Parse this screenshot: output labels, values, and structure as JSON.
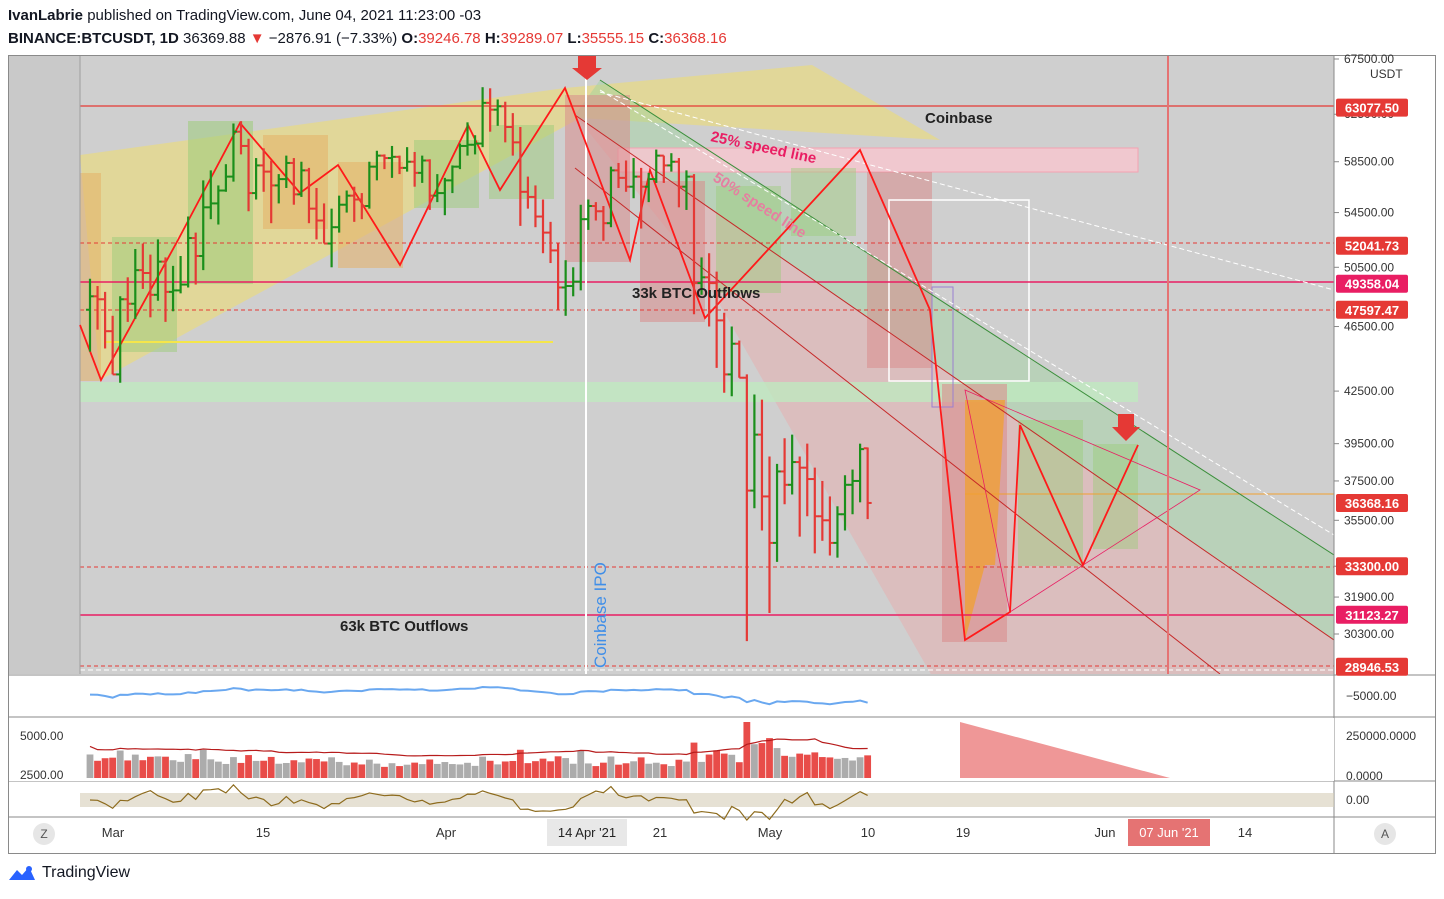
{
  "header": {
    "author": "IvanLabrie",
    "published_text": "published on TradingView.com, June 04, 2021 11:23:00 -03",
    "symbol": "BINANCE:BTCUSDT, 1D",
    "last": "36369.88",
    "change_arrow": "▼",
    "change": "−2876.91 (−7.33%)",
    "o_label": "O:",
    "o_val": "39246.78",
    "h_label": "H:",
    "h_val": "39289.07",
    "l_label": "L:",
    "l_val": "35555.15",
    "c_label": "C:",
    "c_val": "36368.16"
  },
  "price_axis": {
    "currency": "USDT",
    "ticks": [
      "67500.00",
      "62500.00",
      "58500.00",
      "54500.00",
      "50500.00",
      "46500.00",
      "42500.00",
      "39500.00",
      "37500.00",
      "35500.00",
      "33300.00",
      "31900.00",
      "30300.00"
    ],
    "badges": [
      {
        "text": "63077.50",
        "color": "#e53935"
      },
      {
        "text": "52041.73",
        "color": "#e53935"
      },
      {
        "text": "49358.04",
        "color": "#e91e63"
      },
      {
        "text": "47597.47",
        "color": "#e53935"
      },
      {
        "text": "36368.16",
        "color": "#e53935"
      },
      {
        "text": "33300.00",
        "color": "#e53935"
      },
      {
        "text": "31123.27",
        "color": "#e91e63"
      },
      {
        "text": "28946.53",
        "color": "#e53935"
      }
    ]
  },
  "annotations": {
    "coinbase": "Coinbase",
    "speed25": "25% speed line",
    "speed50": "50% speed line",
    "outflows33": "33k BTC Outflows",
    "outflows63": "63k BTC Outflows",
    "ipo": "Coinbase IPO"
  },
  "panes": {
    "oscillator_tick": "−5000.00",
    "volume_left_ticks": [
      "5000.00",
      "2500.00"
    ],
    "volume_right_ticks": [
      "250000.0000",
      "0.0000"
    ],
    "momentum_tick": "0.00"
  },
  "time_axis": {
    "labels": [
      "Mar",
      "15",
      "Apr",
      "21",
      "May",
      "10",
      "19",
      "Jun",
      "14"
    ],
    "crosshair_date": "14 Apr '21",
    "future_date": "07 Jun '21"
  },
  "footer": {
    "brand": "TradingView",
    "z_button": "Z",
    "a_button": "A"
  },
  "colors": {
    "up": "#1b8f1b",
    "down": "#e53935",
    "accent_red": "#e53935",
    "magenta": "#e91e63"
  },
  "chart_data": {
    "type": "ohlc",
    "symbol": "BINANCE:BTCUSDT",
    "interval": "1D",
    "ylim": [
      28500,
      68000
    ],
    "log_scale": true,
    "horizontal_levels": [
      63077.5,
      52041.73,
      49358.04,
      47597.47,
      36368.16,
      33300.0,
      31123.27,
      28946.53
    ],
    "candles": [
      {
        "o": 47600,
        "h": 49700,
        "l": 44900,
        "c": 48500
      },
      {
        "o": 48500,
        "h": 49200,
        "l": 46300,
        "c": 48300
      },
      {
        "o": 48300,
        "h": 48800,
        "l": 45100,
        "c": 46200
      },
      {
        "o": 46200,
        "h": 47200,
        "l": 43500,
        "c": 43500
      },
      {
        "o": 43500,
        "h": 48500,
        "l": 43000,
        "c": 48300
      },
      {
        "o": 48300,
        "h": 49800,
        "l": 46800,
        "c": 48000
      },
      {
        "o": 48000,
        "h": 51800,
        "l": 47000,
        "c": 50300
      },
      {
        "o": 50300,
        "h": 52200,
        "l": 49000,
        "c": 50100
      },
      {
        "o": 50100,
        "h": 51400,
        "l": 47100,
        "c": 48600
      },
      {
        "o": 48600,
        "h": 52500,
        "l": 48200,
        "c": 50900
      },
      {
        "o": 50900,
        "h": 51200,
        "l": 46800,
        "c": 48800
      },
      {
        "o": 48800,
        "h": 50600,
        "l": 47500,
        "c": 48900
      },
      {
        "o": 48900,
        "h": 51300,
        "l": 48700,
        "c": 49300
      },
      {
        "o": 49300,
        "h": 54200,
        "l": 49100,
        "c": 52600
      },
      {
        "o": 52600,
        "h": 53000,
        "l": 49300,
        "c": 51300
      },
      {
        "o": 51300,
        "h": 57000,
        "l": 50300,
        "c": 54900
      },
      {
        "o": 54900,
        "h": 57800,
        "l": 54000,
        "c": 55200
      },
      {
        "o": 55200,
        "h": 56600,
        "l": 53600,
        "c": 56200
      },
      {
        "o": 56200,
        "h": 58300,
        "l": 56100,
        "c": 57300
      },
      {
        "o": 57300,
        "h": 61700,
        "l": 56900,
        "c": 61000
      },
      {
        "o": 61000,
        "h": 61900,
        "l": 59100,
        "c": 59800
      },
      {
        "o": 59800,
        "h": 60400,
        "l": 54600,
        "c": 56000
      },
      {
        "o": 56000,
        "h": 58800,
        "l": 55500,
        "c": 58200
      },
      {
        "o": 58200,
        "h": 59600,
        "l": 56100,
        "c": 57700
      },
      {
        "o": 57700,
        "h": 58600,
        "l": 53700,
        "c": 56600
      },
      {
        "o": 56600,
        "h": 57500,
        "l": 55200,
        "c": 57100
      },
      {
        "o": 57100,
        "h": 59000,
        "l": 56400,
        "c": 58400
      },
      {
        "o": 58400,
        "h": 58800,
        "l": 55100,
        "c": 55900
      },
      {
        "o": 55900,
        "h": 58500,
        "l": 55700,
        "c": 57800
      },
      {
        "o": 57800,
        "h": 58000,
        "l": 53700,
        "c": 54800
      },
      {
        "o": 54800,
        "h": 56400,
        "l": 52500,
        "c": 53900
      },
      {
        "o": 53900,
        "h": 55200,
        "l": 52200,
        "c": 52200
      },
      {
        "o": 52200,
        "h": 54800,
        "l": 50500,
        "c": 53400
      },
      {
        "o": 53400,
        "h": 55800,
        "l": 53000,
        "c": 55100
      },
      {
        "o": 55100,
        "h": 56200,
        "l": 54500,
        "c": 55800
      },
      {
        "o": 55800,
        "h": 56500,
        "l": 53800,
        "c": 55500
      },
      {
        "o": 55500,
        "h": 56000,
        "l": 54000,
        "c": 55000
      },
      {
        "o": 55000,
        "h": 58500,
        "l": 54800,
        "c": 58100
      },
      {
        "o": 58100,
        "h": 59400,
        "l": 57000,
        "c": 59000
      },
      {
        "o": 59000,
        "h": 59100,
        "l": 57900,
        "c": 58800
      },
      {
        "o": 58800,
        "h": 59800,
        "l": 57200,
        "c": 58900
      },
      {
        "o": 58900,
        "h": 59000,
        "l": 57500,
        "c": 58000
      },
      {
        "o": 58000,
        "h": 59700,
        "l": 57700,
        "c": 58500
      },
      {
        "o": 58500,
        "h": 59300,
        "l": 56500,
        "c": 57600
      },
      {
        "o": 57600,
        "h": 59000,
        "l": 56800,
        "c": 58600
      },
      {
        "o": 58600,
        "h": 58700,
        "l": 54700,
        "c": 55800
      },
      {
        "o": 55800,
        "h": 57500,
        "l": 55300,
        "c": 56000
      },
      {
        "o": 56000,
        "h": 57200,
        "l": 54300,
        "c": 57000
      },
      {
        "o": 57000,
        "h": 58200,
        "l": 56000,
        "c": 58100
      },
      {
        "o": 58100,
        "h": 60000,
        "l": 57900,
        "c": 59800
      },
      {
        "o": 59800,
        "h": 61800,
        "l": 59000,
        "c": 59900
      },
      {
        "o": 59900,
        "h": 60700,
        "l": 59100,
        "c": 60000
      },
      {
        "o": 60000,
        "h": 64900,
        "l": 59700,
        "c": 63500
      },
      {
        "o": 63500,
        "h": 64800,
        "l": 61000,
        "c": 62900
      },
      {
        "o": 62900,
        "h": 63800,
        "l": 61500,
        "c": 63200
      },
      {
        "o": 63200,
        "h": 63600,
        "l": 60100,
        "c": 61400
      },
      {
        "o": 61400,
        "h": 62600,
        "l": 59000,
        "c": 60100
      },
      {
        "o": 60100,
        "h": 61400,
        "l": 53500,
        "c": 56100
      },
      {
        "o": 56100,
        "h": 57300,
        "l": 54800,
        "c": 55700
      },
      {
        "o": 55700,
        "h": 56600,
        "l": 53400,
        "c": 54200
      },
      {
        "o": 54200,
        "h": 55500,
        "l": 51500,
        "c": 53000
      },
      {
        "o": 53000,
        "h": 53800,
        "l": 50800,
        "c": 51700
      },
      {
        "o": 51700,
        "h": 52200,
        "l": 47600,
        "c": 49100
      },
      {
        "o": 49100,
        "h": 51000,
        "l": 47200,
        "c": 49200
      },
      {
        "o": 49200,
        "h": 50500,
        "l": 48500,
        "c": 49500
      },
      {
        "o": 49500,
        "h": 55100,
        "l": 48900,
        "c": 54000
      },
      {
        "o": 54000,
        "h": 55500,
        "l": 53200,
        "c": 55000
      },
      {
        "o": 55000,
        "h": 55300,
        "l": 53900,
        "c": 54600
      },
      {
        "o": 54600,
        "h": 55000,
        "l": 52400,
        "c": 53700
      },
      {
        "o": 53700,
        "h": 58100,
        "l": 53400,
        "c": 57800
      },
      {
        "o": 57800,
        "h": 58400,
        "l": 56400,
        "c": 57200
      },
      {
        "o": 57200,
        "h": 58600,
        "l": 56100,
        "c": 56500
      },
      {
        "o": 56500,
        "h": 58800,
        "l": 55600,
        "c": 57300
      },
      {
        "o": 57300,
        "h": 58000,
        "l": 53300,
        "c": 56500
      },
      {
        "o": 56500,
        "h": 57600,
        "l": 55300,
        "c": 57100
      },
      {
        "o": 57100,
        "h": 59500,
        "l": 56800,
        "c": 59000
      },
      {
        "o": 59000,
        "h": 59000,
        "l": 56800,
        "c": 58200
      },
      {
        "o": 58200,
        "h": 59200,
        "l": 57700,
        "c": 58500
      },
      {
        "o": 58500,
        "h": 58800,
        "l": 54900,
        "c": 56500
      },
      {
        "o": 56500,
        "h": 57800,
        "l": 54700,
        "c": 57300
      },
      {
        "o": 57300,
        "h": 57500,
        "l": 47300,
        "c": 49400
      },
      {
        "o": 49400,
        "h": 51200,
        "l": 48600,
        "c": 49800
      },
      {
        "o": 49800,
        "h": 51500,
        "l": 46500,
        "c": 49400
      },
      {
        "o": 49400,
        "h": 50200,
        "l": 43900,
        "c": 46900
      },
      {
        "o": 46900,
        "h": 47400,
        "l": 42400,
        "c": 43500
      },
      {
        "o": 43500,
        "h": 46500,
        "l": 42200,
        "c": 45400
      },
      {
        "o": 45400,
        "h": 45600,
        "l": 43300,
        "c": 43300
      },
      {
        "o": 43300,
        "h": 43500,
        "l": 30000,
        "c": 37000
      },
      {
        "o": 37000,
        "h": 42300,
        "l": 36100,
        "c": 40000
      },
      {
        "o": 40000,
        "h": 42000,
        "l": 35000,
        "c": 36700
      },
      {
        "o": 36700,
        "h": 38800,
        "l": 31200,
        "c": 34400
      },
      {
        "o": 34400,
        "h": 38400,
        "l": 33500,
        "c": 38000
      },
      {
        "o": 38000,
        "h": 39800,
        "l": 36300,
        "c": 37300
      },
      {
        "o": 37300,
        "h": 40000,
        "l": 36800,
        "c": 38500
      },
      {
        "o": 38500,
        "h": 38800,
        "l": 34700,
        "c": 38200
      },
      {
        "o": 38200,
        "h": 39500,
        "l": 35700,
        "c": 37600
      },
      {
        "o": 37600,
        "h": 38200,
        "l": 33900,
        "c": 35700
      },
      {
        "o": 35700,
        "h": 37500,
        "l": 34500,
        "c": 35500
      },
      {
        "o": 35500,
        "h": 36700,
        "l": 33800,
        "c": 34400
      },
      {
        "o": 34400,
        "h": 36200,
        "l": 33700,
        "c": 35800
      },
      {
        "o": 35800,
        "h": 37800,
        "l": 35000,
        "c": 37300
      },
      {
        "o": 37300,
        "h": 38100,
        "l": 35800,
        "c": 37500
      },
      {
        "o": 37500,
        "h": 39500,
        "l": 36400,
        "c": 39200
      },
      {
        "o": 39246.78,
        "h": 39289.07,
        "l": 35555.15,
        "c": 36368.16
      }
    ]
  }
}
